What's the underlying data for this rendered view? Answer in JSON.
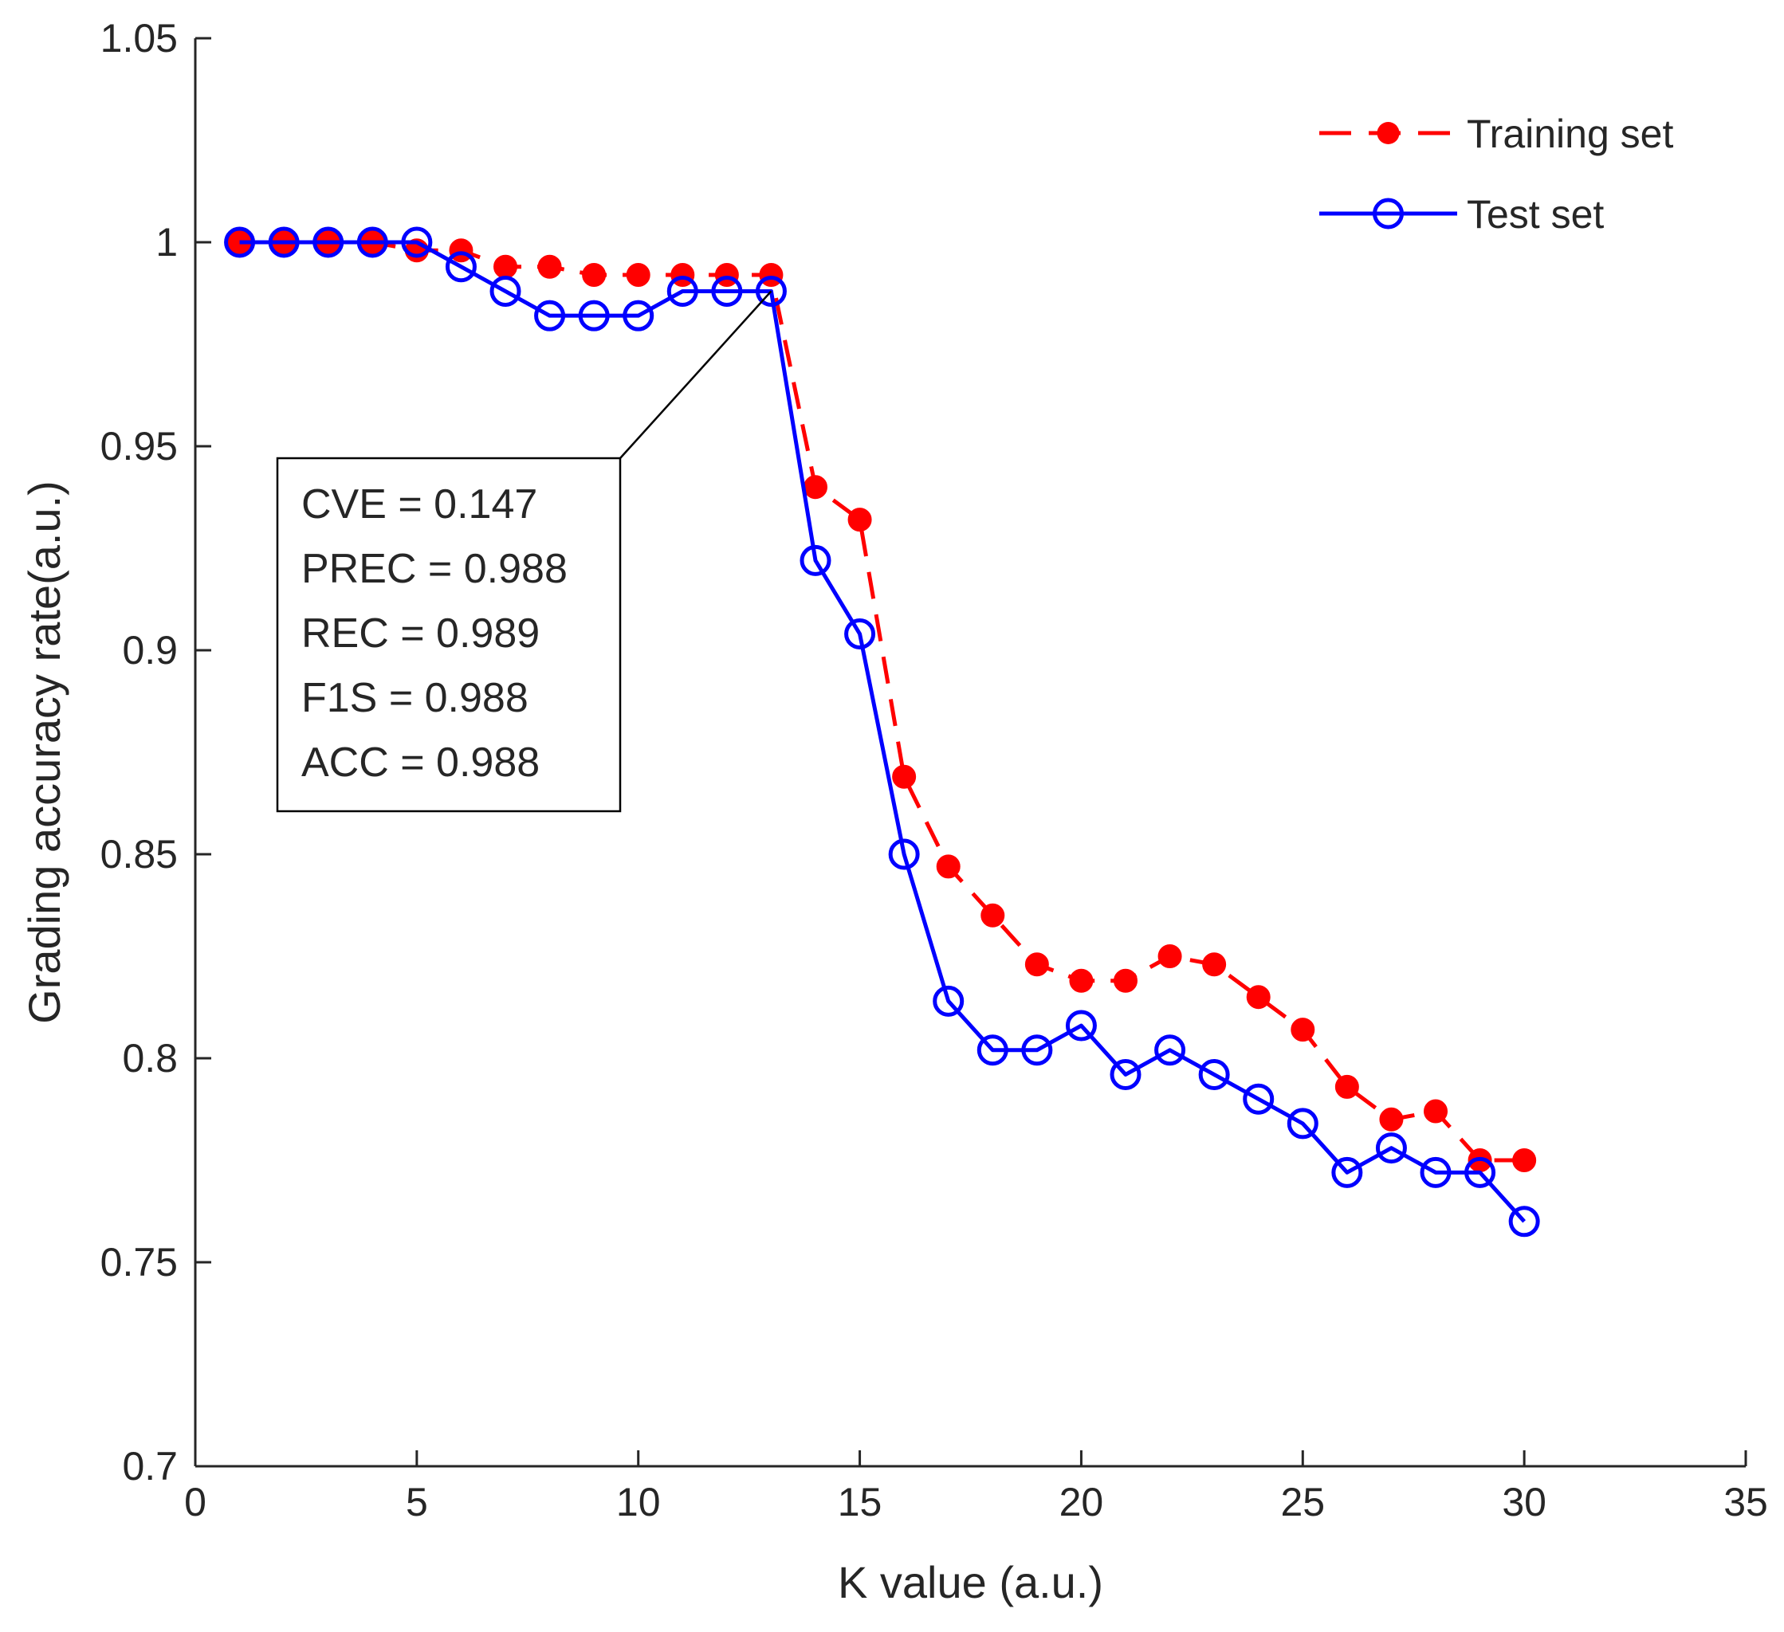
{
  "chart_data": {
    "type": "line",
    "title": "",
    "xlabel": "K value (a.u.)",
    "ylabel": "Grading accuracy rate(a.u.)",
    "xlim": [
      0,
      35
    ],
    "ylim": [
      0.7,
      1.05
    ],
    "xticks": [
      0,
      5,
      10,
      15,
      20,
      25,
      30,
      35
    ],
    "xtick_labels": [
      "0",
      "5",
      "10",
      "15",
      "20",
      "25",
      "30",
      "35"
    ],
    "yticks": [
      0.7,
      0.75,
      0.8,
      0.85,
      0.9,
      0.95,
      1.0,
      1.05
    ],
    "ytick_labels": [
      "0.7",
      "0.75",
      "0.8",
      "0.85",
      "0.9",
      "0.95",
      "1",
      "1.05"
    ],
    "grid": false,
    "legend_position": "top-right",
    "x": [
      1,
      2,
      3,
      4,
      5,
      6,
      7,
      8,
      9,
      10,
      11,
      12,
      13,
      14,
      15,
      16,
      17,
      18,
      19,
      20,
      21,
      22,
      23,
      24,
      25,
      26,
      27,
      28,
      29,
      30
    ],
    "series": [
      {
        "name": "Training set",
        "color": "#ff0000",
        "line_style": "dashed",
        "marker": "filled-circle",
        "values": [
          1.0,
          1.0,
          1.0,
          1.0,
          0.998,
          0.998,
          0.994,
          0.994,
          0.992,
          0.992,
          0.992,
          0.992,
          0.992,
          0.94,
          0.932,
          0.869,
          0.847,
          0.835,
          0.823,
          0.819,
          0.819,
          0.825,
          0.823,
          0.815,
          0.807,
          0.793,
          0.785,
          0.787,
          0.775,
          0.775
        ]
      },
      {
        "name": "Test set",
        "color": "#0000ff",
        "line_style": "solid",
        "marker": "open-circle",
        "values": [
          1.0,
          1.0,
          1.0,
          1.0,
          1.0,
          0.994,
          0.988,
          0.982,
          0.982,
          0.982,
          0.988,
          0.988,
          0.988,
          0.922,
          0.904,
          0.85,
          0.814,
          0.802,
          0.802,
          0.808,
          0.796,
          0.802,
          0.796,
          0.79,
          0.784,
          0.772,
          0.778,
          0.772,
          0.772,
          0.76
        ]
      }
    ],
    "annotation": {
      "target_x": 13,
      "target_y": 0.988,
      "lines": [
        "CVE = 0.147",
        "PREC = 0.988",
        "REC = 0.989",
        "F1S = 0.988",
        "ACC = 0.988"
      ]
    }
  }
}
